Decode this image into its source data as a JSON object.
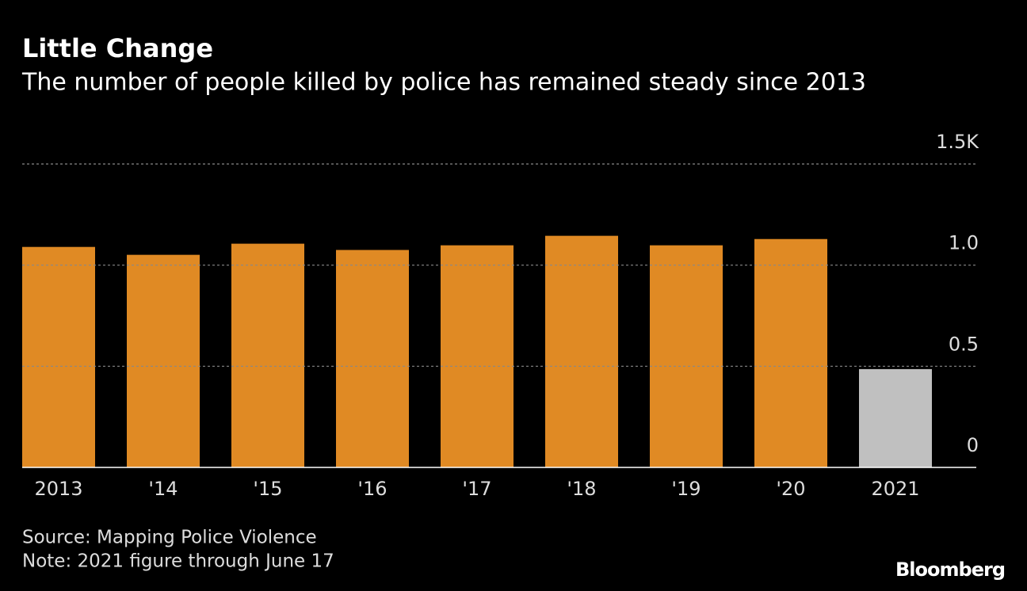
{
  "chart_data": {
    "type": "bar",
    "title": "Little Change",
    "subtitle": "The number of people killed by police has remained steady since 2013",
    "categories": [
      "2013",
      "'14",
      "'15",
      "'16",
      "'17",
      "'18",
      "'19",
      "'20",
      "2021"
    ],
    "values": [
      1.09,
      1.051,
      1.106,
      1.075,
      1.098,
      1.145,
      1.098,
      1.129,
      0.486
    ],
    "colors": [
      "#e08a24",
      "#e08a24",
      "#e08a24",
      "#e08a24",
      "#e08a24",
      "#e08a24",
      "#e08a24",
      "#e08a24",
      "#c0c0c0"
    ],
    "ylim": [
      0,
      1.5
    ],
    "yticks": [
      0,
      0.5,
      {
        "value": 1,
        "label": "1.0"
      },
      {
        "value": 1.5,
        "label": "1.5K"
      }
    ],
    "grid": true,
    "source": "Source: Mapping Police Violence",
    "note": "Note: 2021 figure through June 17",
    "brand": "Bloomberg"
  }
}
